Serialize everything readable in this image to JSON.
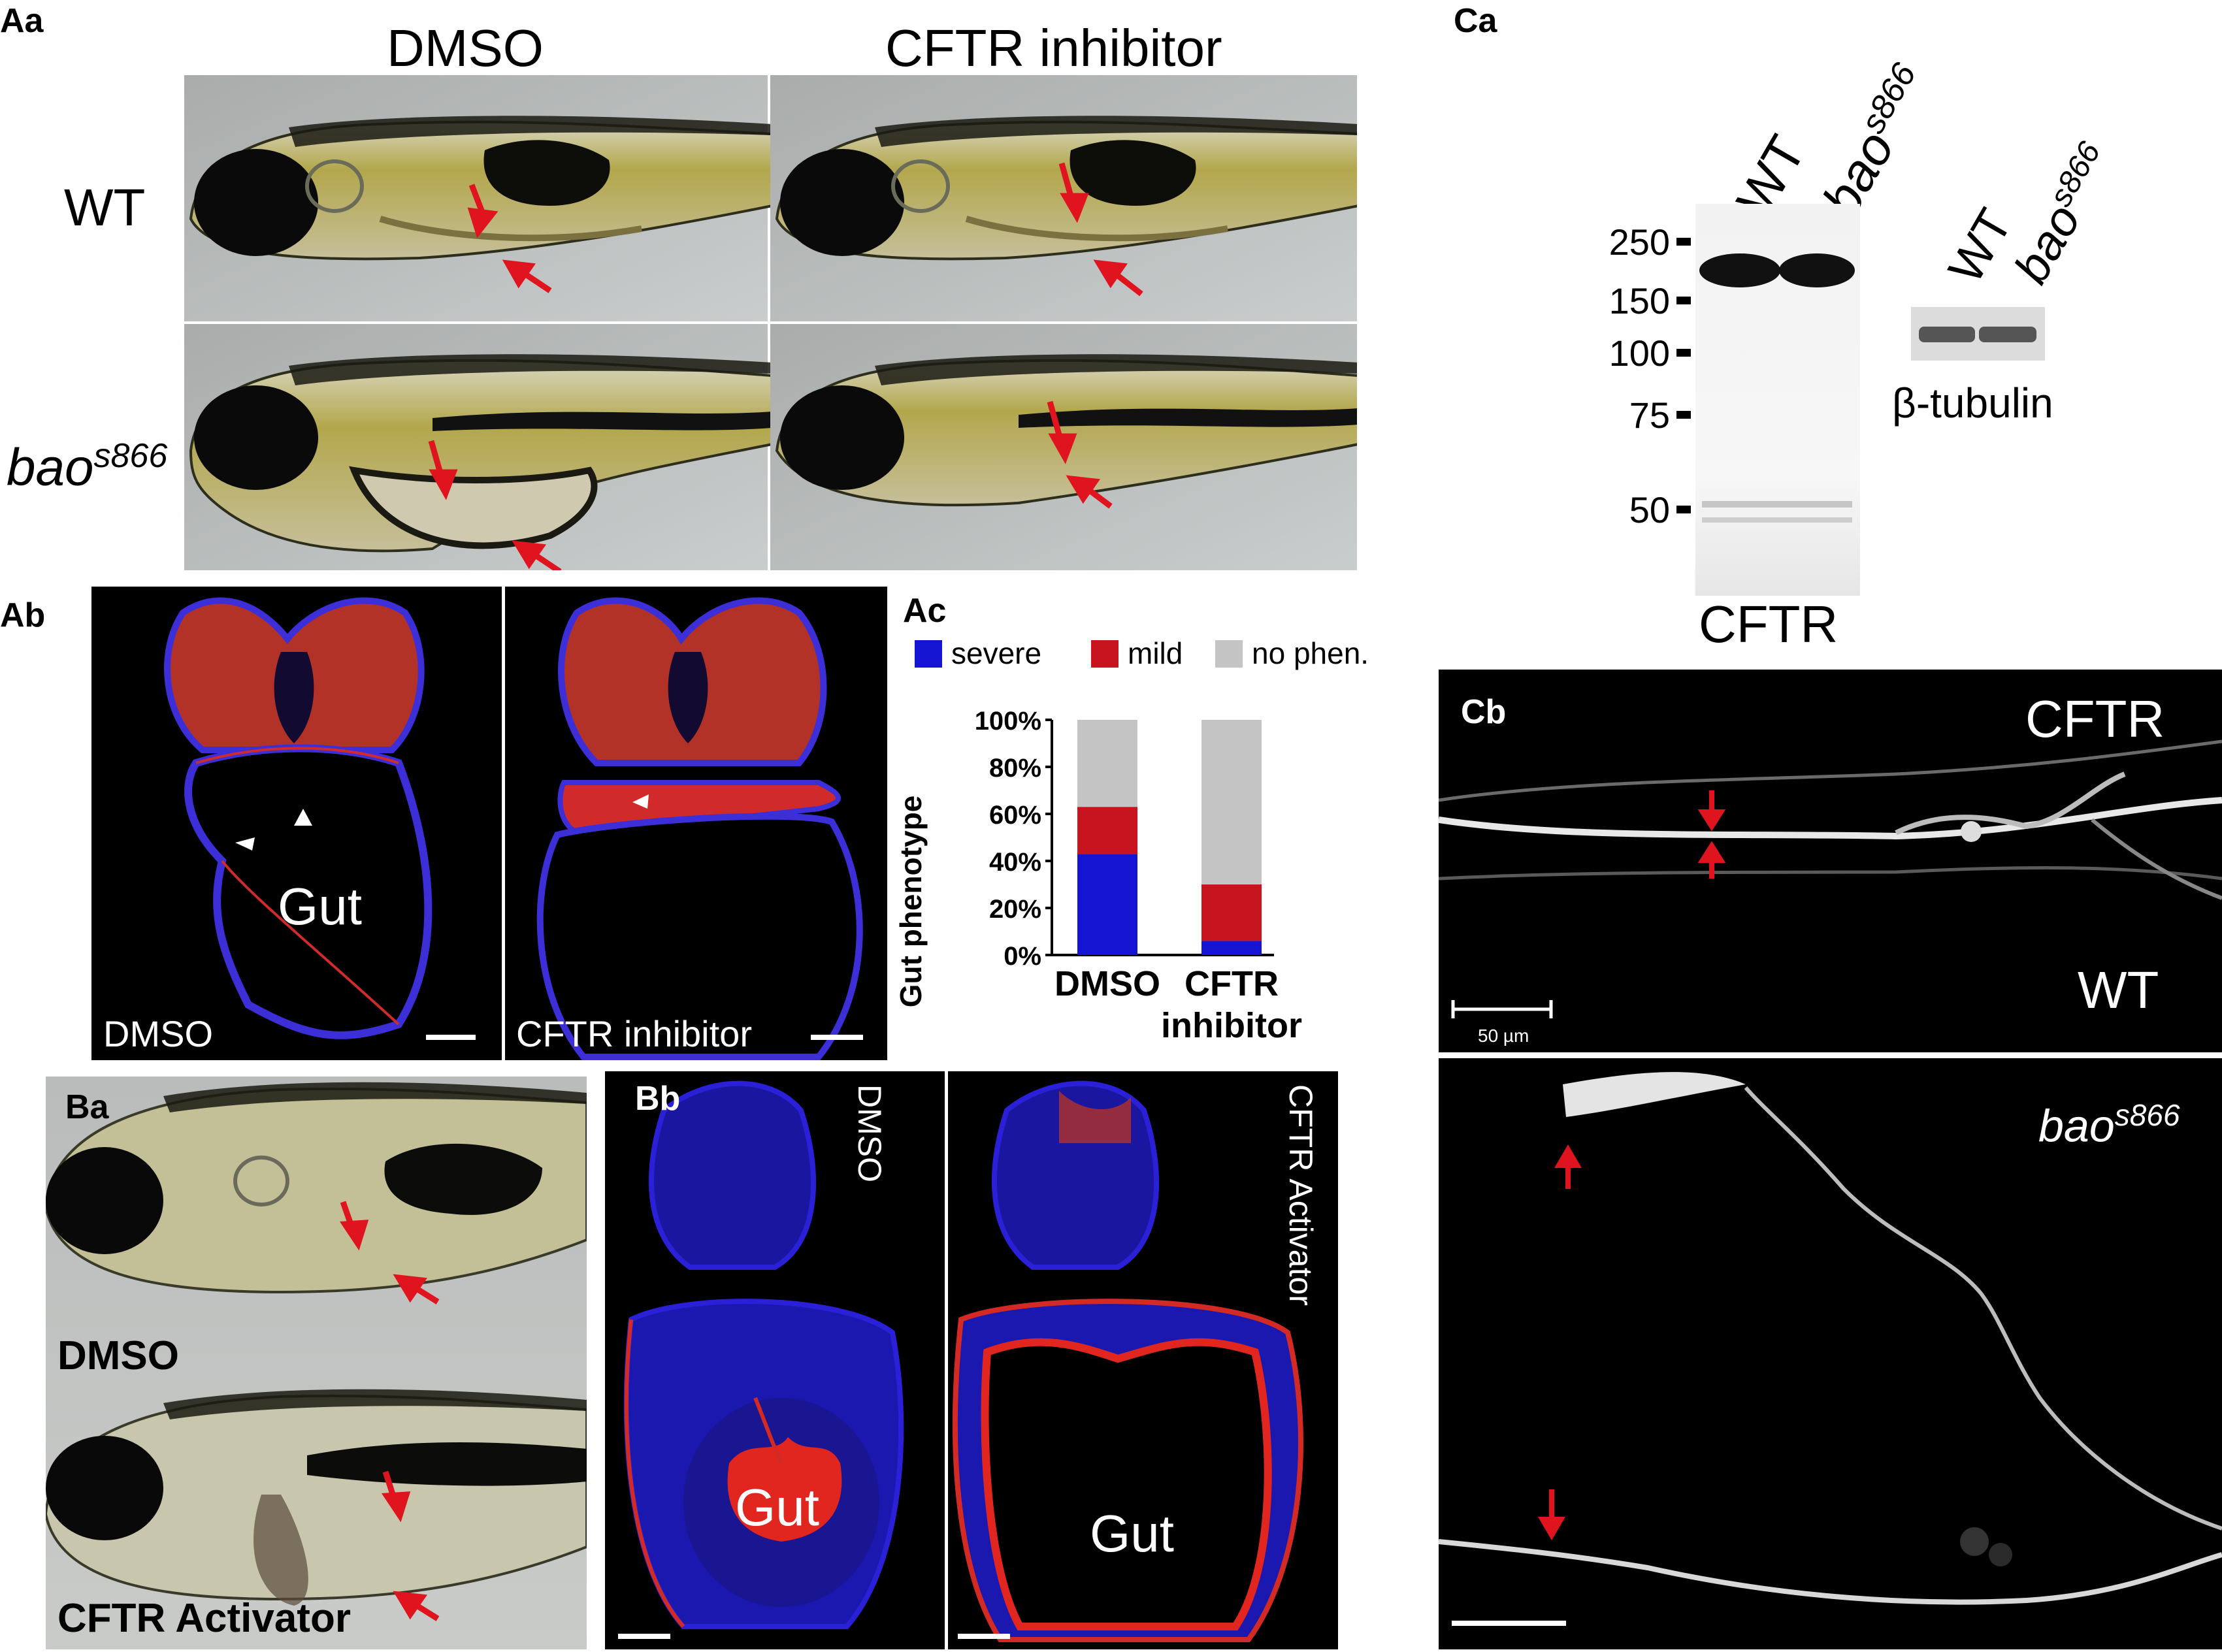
{
  "panels": {
    "Aa": {
      "letter": "Aa",
      "col_dmso": "DMSO",
      "col_inhib": "CFTR inhibitor",
      "row_wt": "WT",
      "row_mut_base": "bao",
      "row_mut_sup": "s866"
    },
    "Ab": {
      "letter": "Ab",
      "left_label": "DMSO",
      "right_label": "CFTR inhibitor",
      "gut": "Gut"
    },
    "Ac": {
      "letter": "Ac"
    },
    "Ba": {
      "letter": "Ba",
      "top_label": "DMSO",
      "bottom_label": "CFTR Activator"
    },
    "Bb": {
      "letter": "Bb",
      "left_label": "DMSO",
      "right_label": "CFTR Activator",
      "gut": "Gut"
    },
    "Ca": {
      "letter": "Ca",
      "lane_wt": "WT",
      "lane_mut_base": "bao",
      "lane_mut_sup": "s866",
      "markers": [
        "250",
        "150",
        "100",
        "75",
        "50"
      ],
      "blot_label": "CFTR",
      "loading_label": "β-tubulin"
    },
    "Cb": {
      "letter": "Cb",
      "stain": "CFTR",
      "wt": "WT",
      "mut_base": "bao",
      "mut_sup": "s866",
      "scale": "50 µm"
    }
  },
  "chart_data": {
    "type": "bar",
    "stacked": true,
    "categories": [
      "DMSO",
      "CFTR\ninhibitor"
    ],
    "ylabel": "Gut phenotype",
    "ylim": [
      0,
      100
    ],
    "yticks": [
      "0%",
      "20%",
      "40%",
      "60%",
      "80%",
      "100%"
    ],
    "legend_position": "top",
    "series": [
      {
        "name": "severe",
        "color": "#1414d2",
        "values": [
          43,
          6
        ]
      },
      {
        "name": "mild",
        "color": "#c8141e",
        "values": [
          20,
          24
        ]
      },
      {
        "name": "no phen.",
        "color": "#c4c4c4",
        "values": [
          37,
          70
        ]
      }
    ]
  },
  "colors": {
    "arrow": "#e0141e",
    "dapi": "#2a1fd0",
    "stain_red": "#d42a24"
  }
}
